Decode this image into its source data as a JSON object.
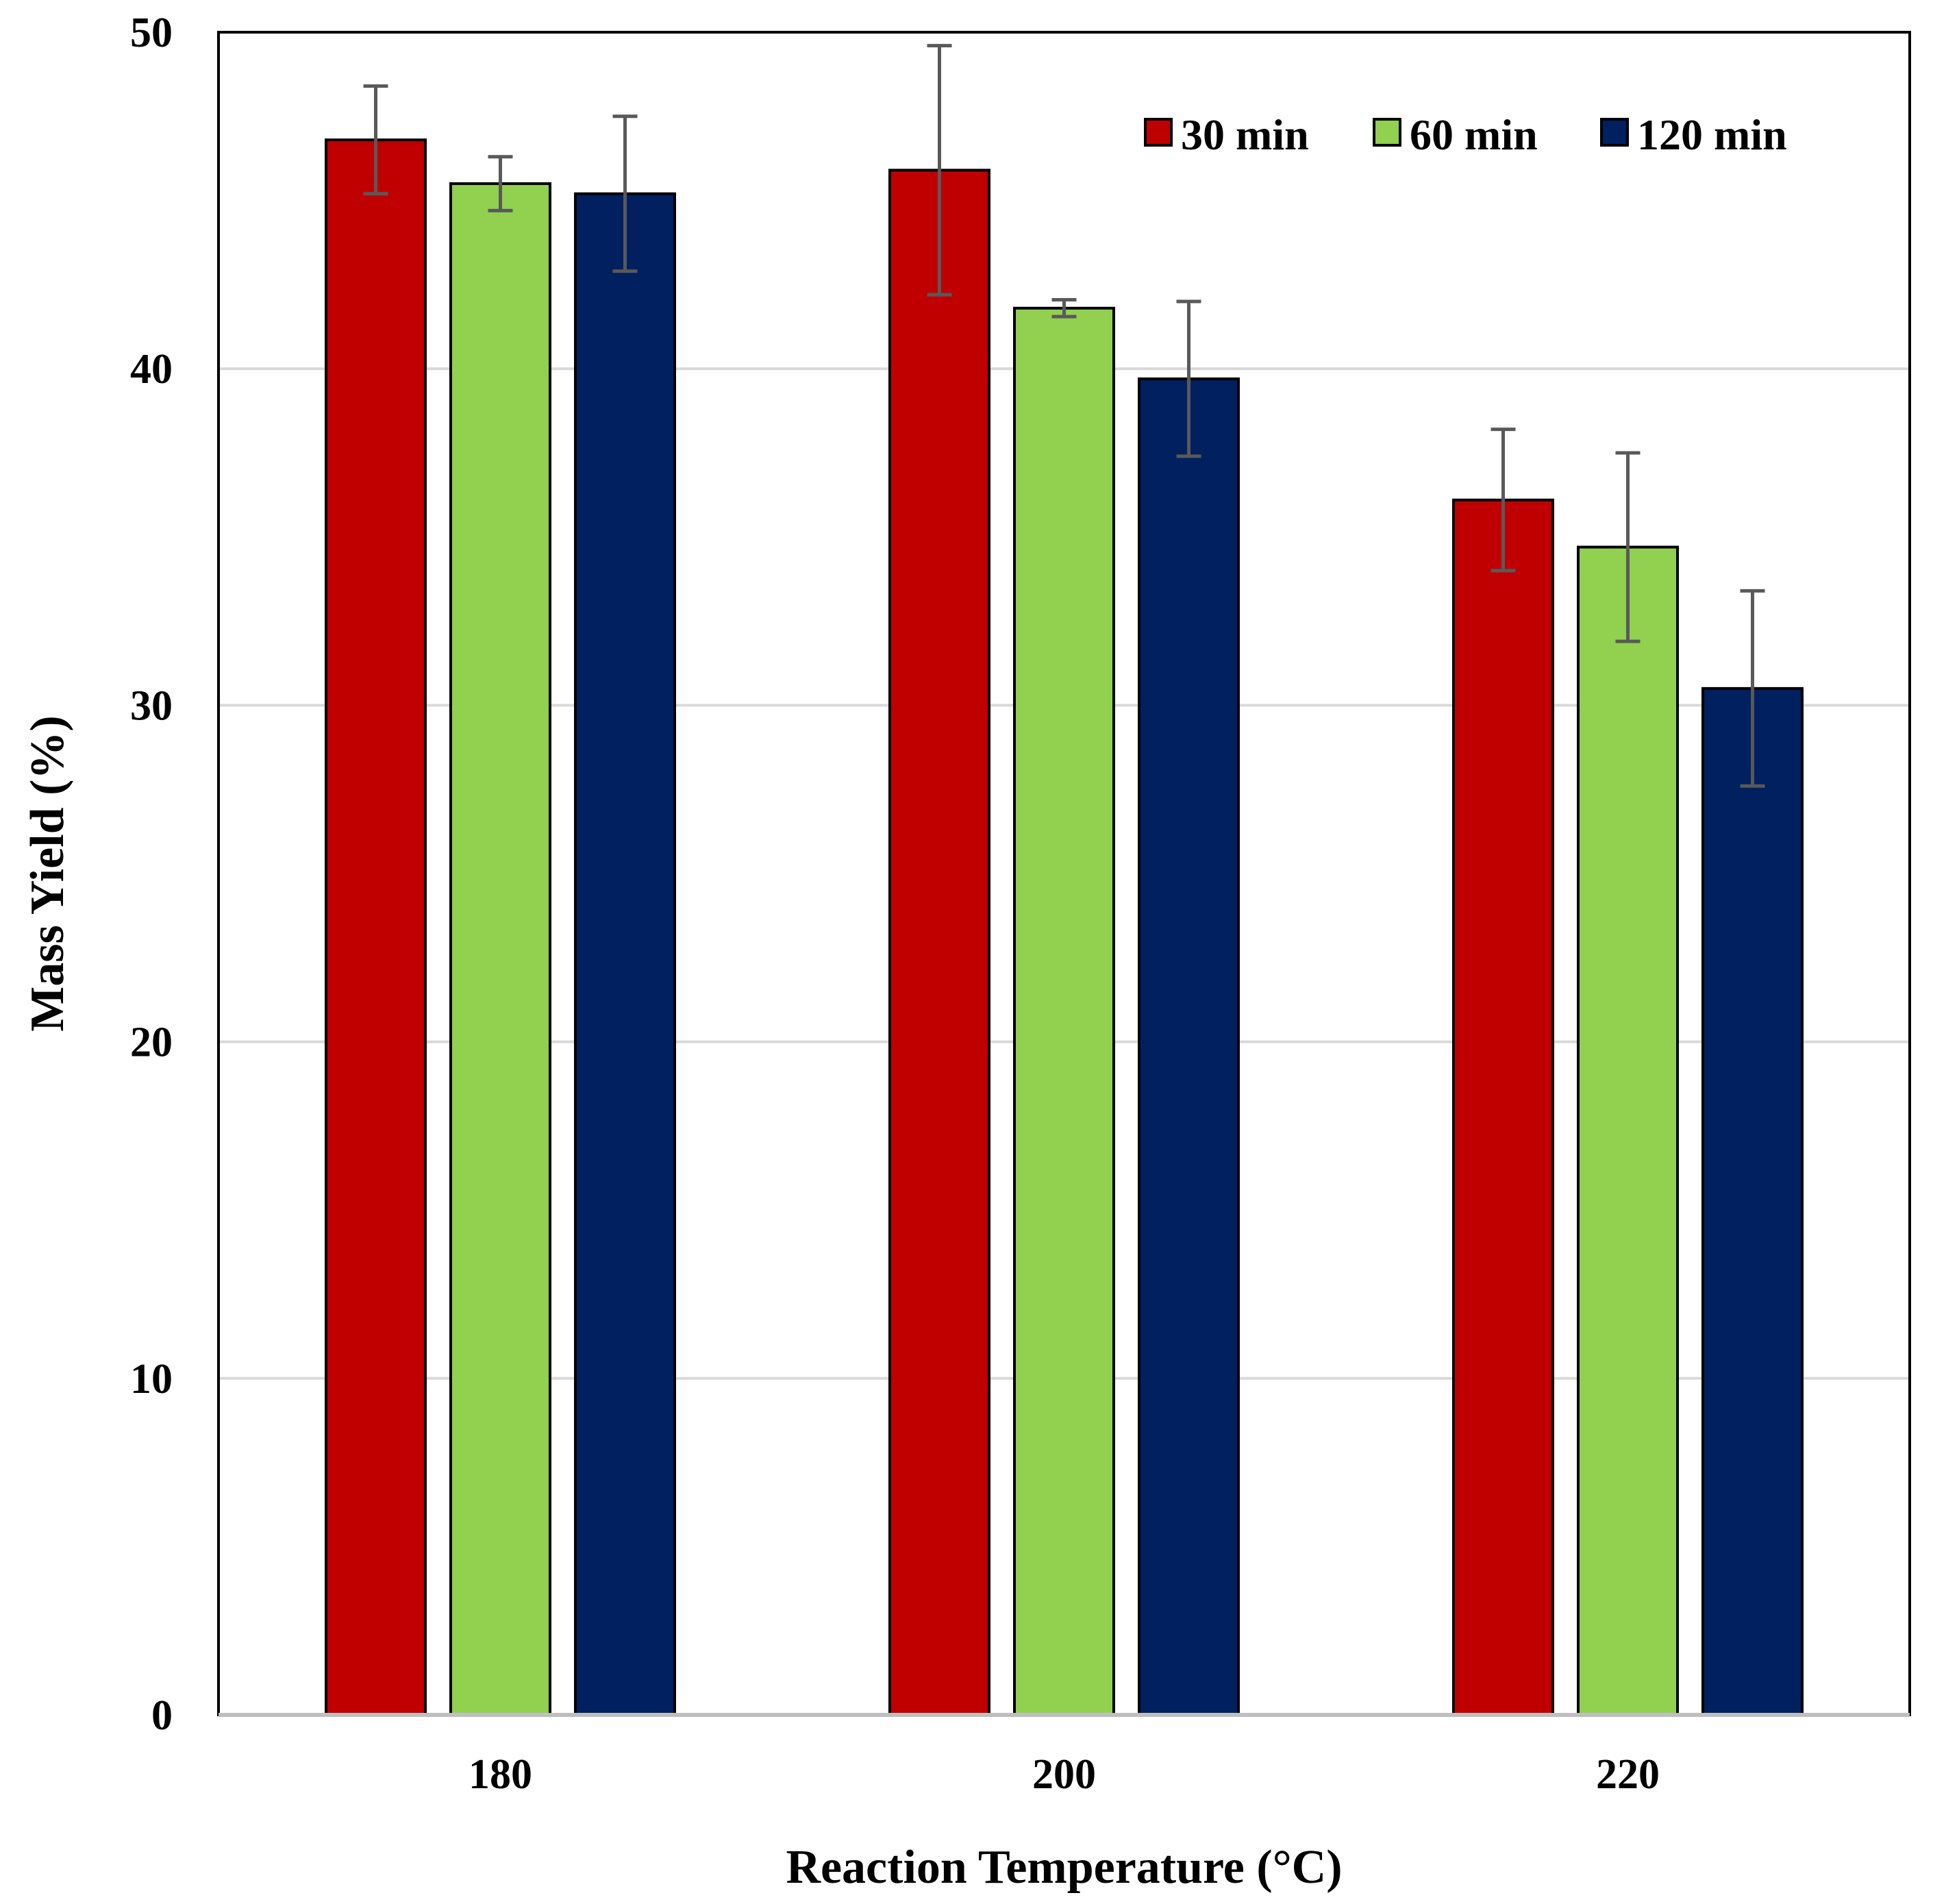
{
  "chart_data": {
    "type": "bar",
    "title": "",
    "xlabel": "Reaction Temperature (°C)",
    "ylabel": "Mass Yield (%)",
    "categories": [
      "180",
      "200",
      "220"
    ],
    "ylim": [
      0,
      50
    ],
    "yticks": [
      "0",
      "10",
      "20",
      "30",
      "40",
      "50"
    ],
    "grid": true,
    "legend_position": "top-right",
    "series": [
      {
        "name": "30 min",
        "color": "#C00000",
        "values": [
          46.8,
          45.9,
          36.1
        ],
        "errors": [
          1.6,
          3.7,
          2.1
        ]
      },
      {
        "name": "60 min",
        "color": "#92D050",
        "values": [
          45.5,
          41.8,
          34.7
        ],
        "errors": [
          0.8,
          0.25,
          2.8
        ]
      },
      {
        "name": "120 min",
        "color": "#002060",
        "values": [
          45.2,
          39.7,
          30.5
        ],
        "errors": [
          2.3,
          2.3,
          2.9
        ]
      }
    ]
  }
}
